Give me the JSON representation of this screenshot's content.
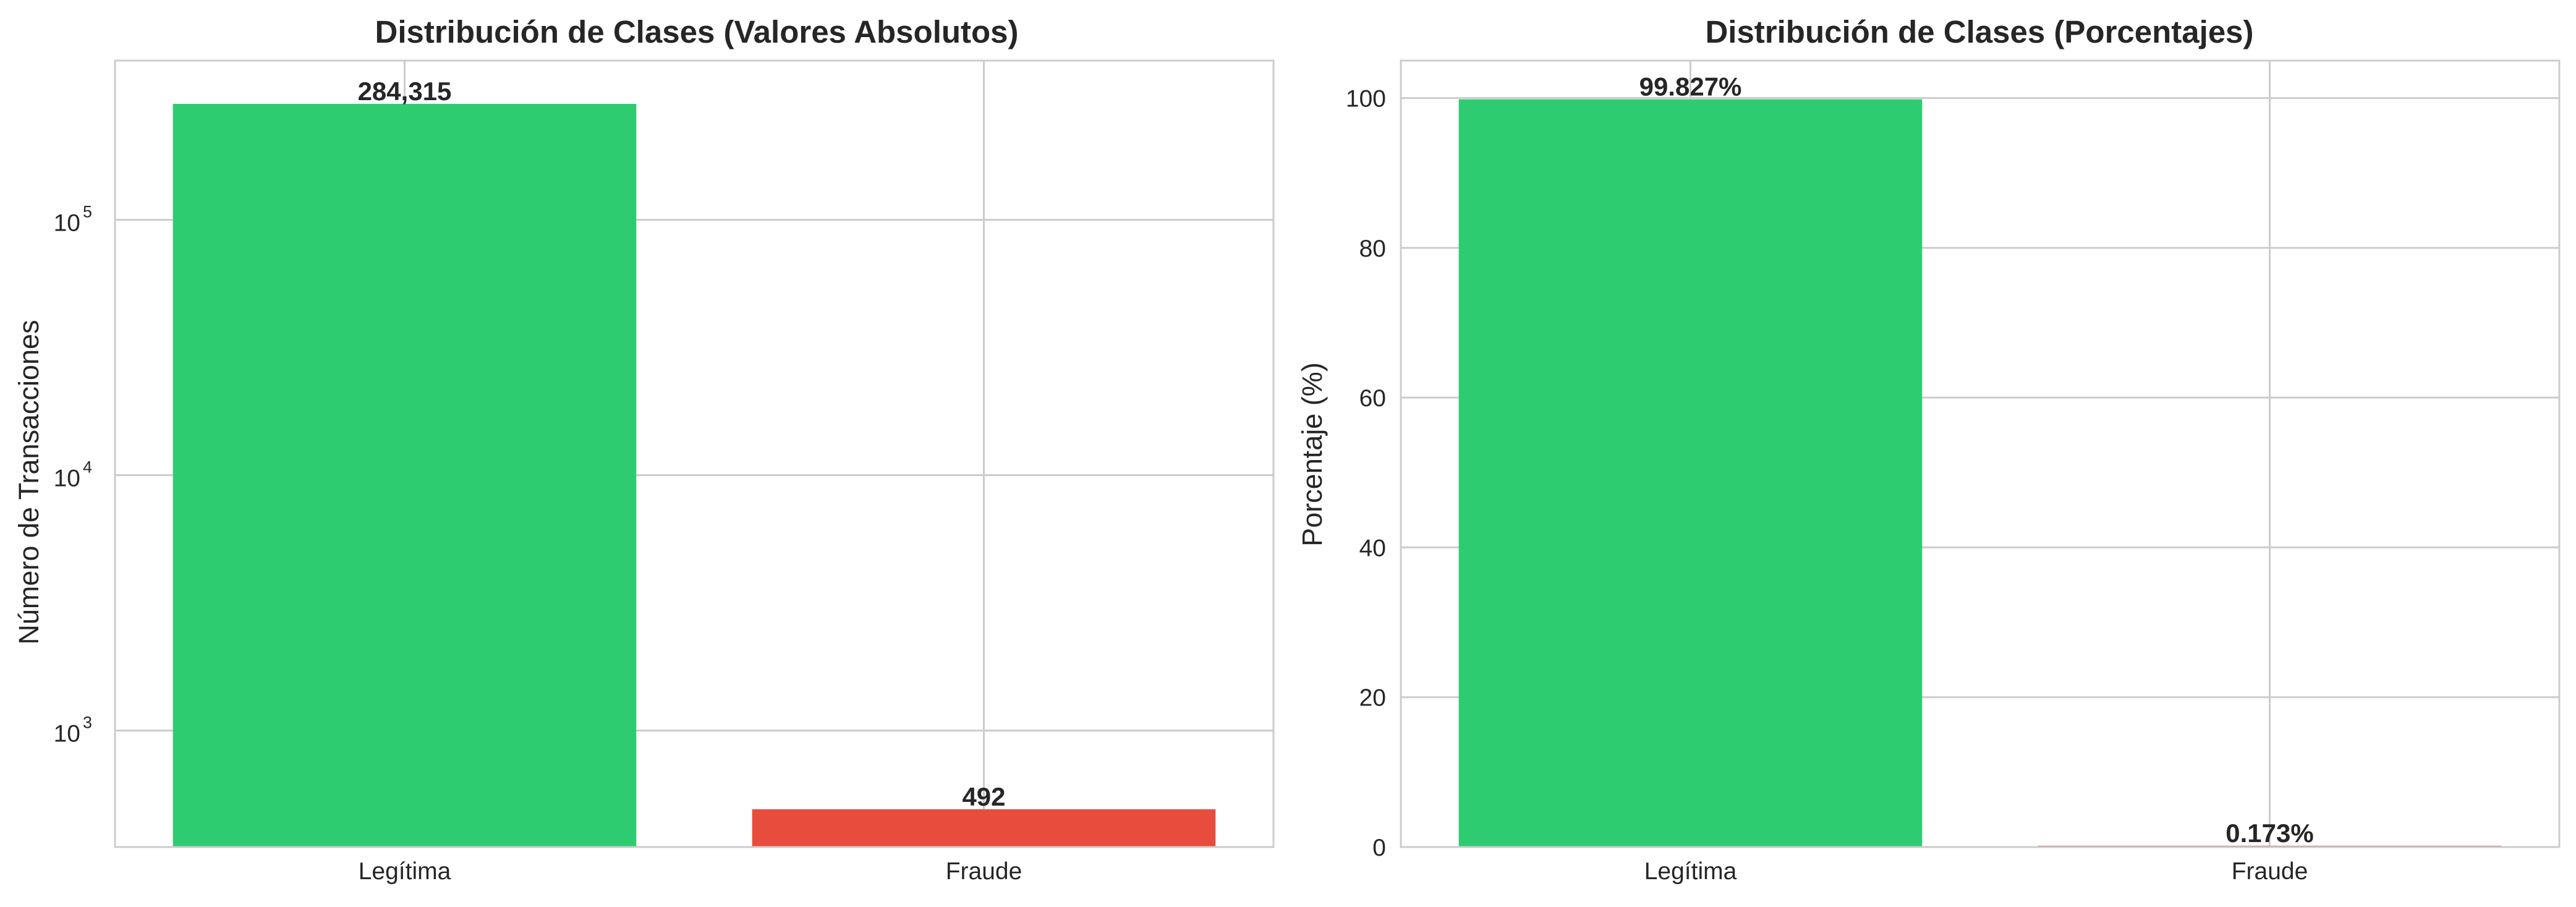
{
  "chart_data": [
    {
      "type": "bar",
      "title": "Distribución de Clases (Valores Absolutos)",
      "xlabel": "",
      "ylabel": "Número de Transacciones",
      "yscale": "log",
      "ylim": [
        350,
        420000
      ],
      "yticks": [
        {
          "base": "10",
          "exp": "3",
          "value": 1000
        },
        {
          "base": "10",
          "exp": "4",
          "value": 10000
        },
        {
          "base": "10",
          "exp": "5",
          "value": 100000
        }
      ],
      "categories": [
        "Legítima",
        "Fraude"
      ],
      "values": [
        284315,
        492
      ],
      "value_labels": [
        "284,315",
        "492"
      ],
      "colors": [
        "#2ecc71",
        "#e74c3c"
      ],
      "grid": true
    },
    {
      "type": "bar",
      "title": "Distribución de Clases (Porcentajes)",
      "xlabel": "",
      "ylabel": "Porcentaje (%)",
      "yscale": "linear",
      "ylim": [
        0,
        105
      ],
      "yticks": [
        0,
        20,
        40,
        60,
        80,
        100
      ],
      "categories": [
        "Legítima",
        "Fraude"
      ],
      "values": [
        99.827,
        0.173
      ],
      "value_labels": [
        "99.827%",
        "0.173%"
      ],
      "colors": [
        "#2ecc71",
        "#e74c3c"
      ],
      "grid": true
    }
  ]
}
